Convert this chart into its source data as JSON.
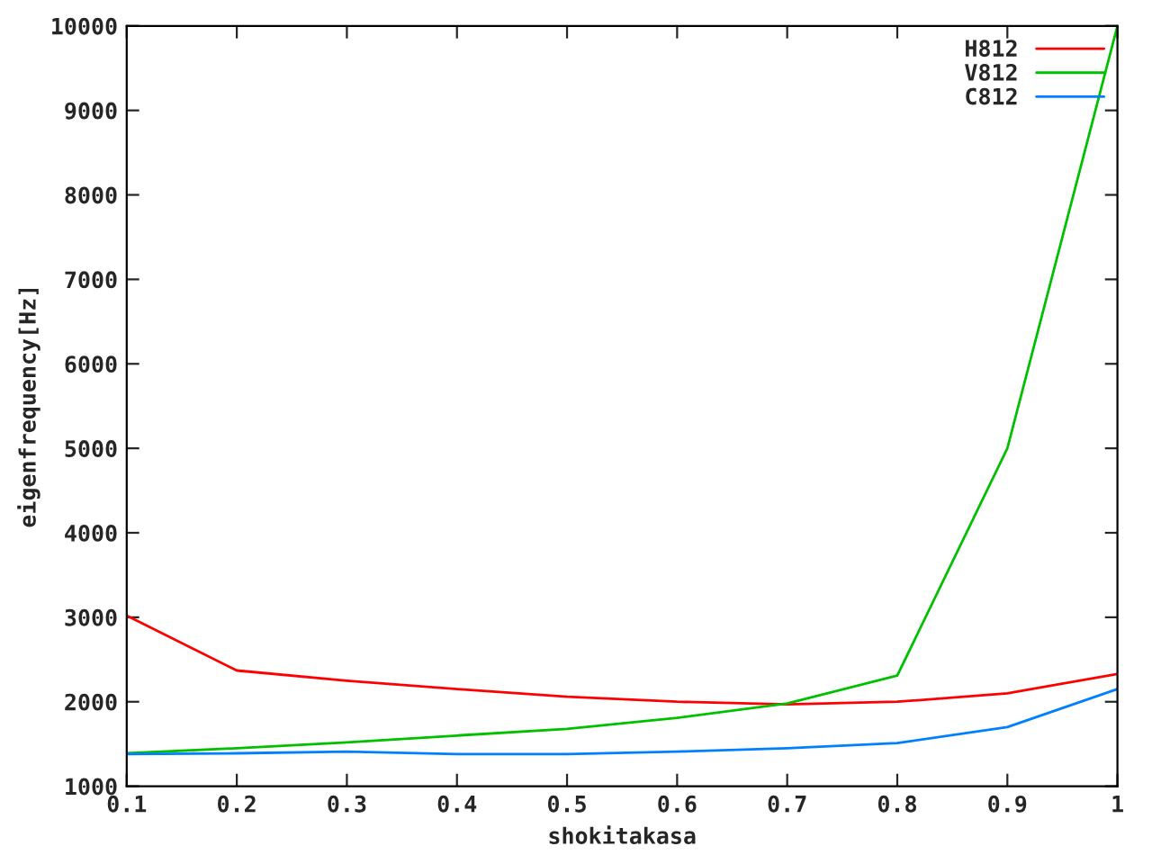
{
  "chart_data": {
    "type": "line",
    "xlabel": "shokitakasa",
    "ylabel": "eigenfrequency[Hz]",
    "x": [
      0.1,
      0.2,
      0.3,
      0.4,
      0.5,
      0.6,
      0.7,
      0.8,
      0.9,
      1
    ],
    "series": [
      {
        "name": "H812",
        "color": "#ff0000",
        "values": [
          3020,
          2370,
          2250,
          2150,
          2060,
          2000,
          1970,
          2000,
          2100,
          2330
        ]
      },
      {
        "name": "V812",
        "color": "#00c000",
        "values": [
          1390,
          1450,
          1520,
          1600,
          1680,
          1810,
          1980,
          2310,
          5000,
          10000
        ]
      },
      {
        "name": "C812",
        "color": "#0080ff",
        "values": [
          1380,
          1390,
          1410,
          1380,
          1380,
          1410,
          1450,
          1510,
          1700,
          2150
        ]
      }
    ],
    "xlim": [
      0.1,
      1
    ],
    "xticks": [
      0.1,
      0.2,
      0.3,
      0.4,
      0.5,
      0.6,
      0.7,
      0.8,
      0.9,
      1
    ],
    "ylim": [
      1000,
      10000
    ],
    "yticks": [
      1000,
      2000,
      3000,
      4000,
      5000,
      6000,
      7000,
      8000,
      9000,
      10000
    ],
    "grid": false,
    "legend": "top right",
    "marker": "none",
    "line_style": "solid"
  }
}
